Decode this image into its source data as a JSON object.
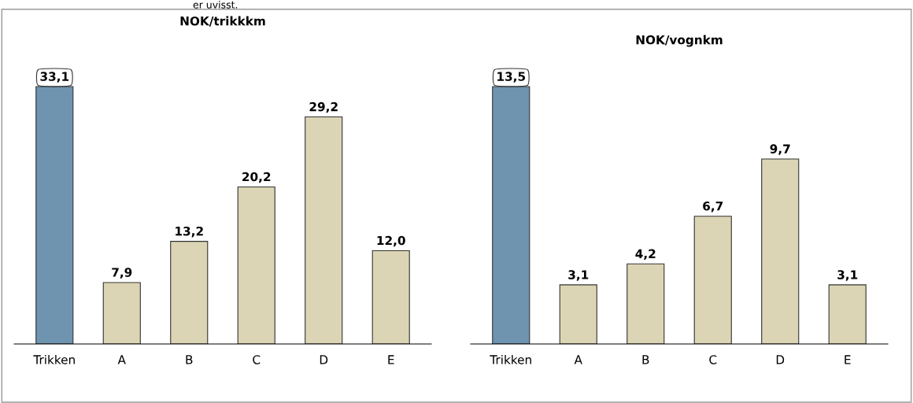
{
  "chart_data": [
    {
      "type": "bar",
      "title": "NOK/trikkkm",
      "data_labels": false,
      "categories": [
        "Trikken",
        "A",
        "B",
        "C",
        "D",
        "E"
      ],
      "values": [
        33.1,
        7.9,
        13.2,
        20.2,
        29.2,
        12.0
      ],
      "colors": [
        "#6e94b0",
        "#dbd5b5",
        "#dbd5b5",
        "#dbd5b5",
        "#dbd5b5",
        "#dbd5b5"
      ],
      "value_labels": [
        "33,1",
        "7,9",
        "13,2",
        "20,2",
        "29,2",
        "12,0"
      ],
      "annotations": [
        "er uvisst."
      ]
    },
    {
      "type": "bar",
      "title": "NOK/vognkm",
      "data_labels": false,
      "categories": [
        "Trikken",
        "A",
        "B",
        "C",
        "D",
        "E"
      ],
      "values": [
        13.5,
        3.1,
        4.2,
        6.7,
        9.7,
        3.1
      ],
      "colors": [
        "#6e94b0",
        "#dbd5b5",
        "#dbd5b5",
        "#dbd5b5",
        "#dbd5b5",
        "#dbd5b5"
      ],
      "value_labels": [
        "13,5",
        "3,1",
        "4,2",
        "6,7",
        "9,7",
        "3,1"
      ]
    }
  ]
}
